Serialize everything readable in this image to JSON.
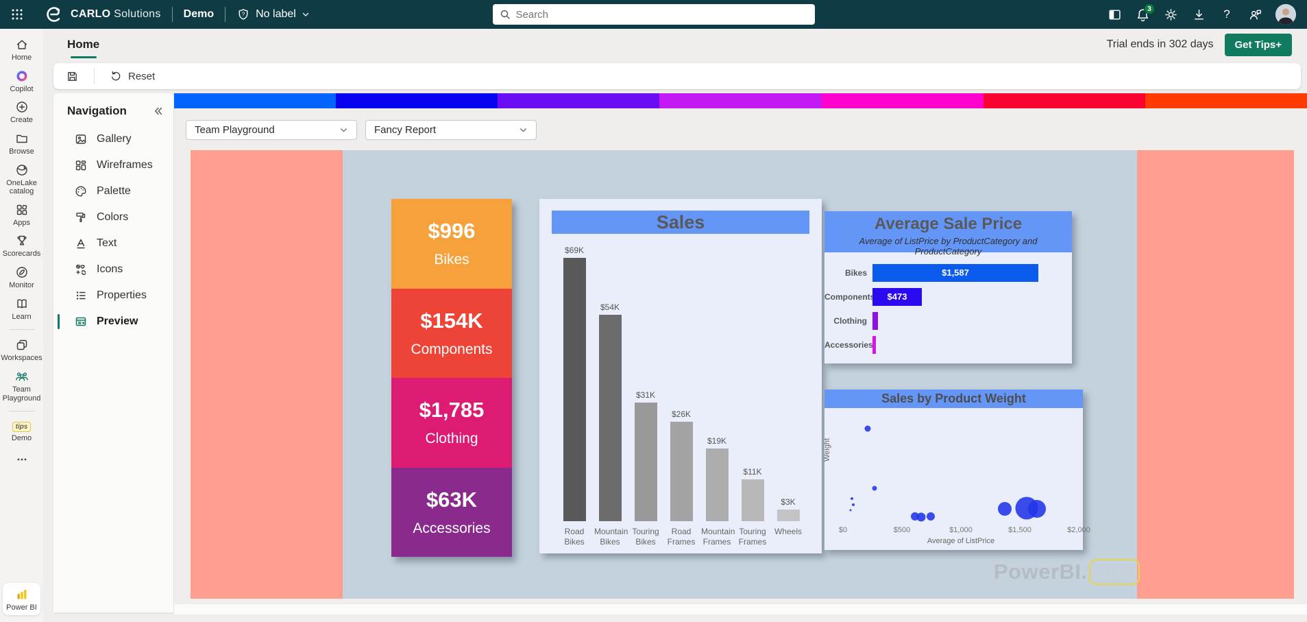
{
  "topbar": {
    "brand_bold": "CARLO",
    "brand_light": "Solutions",
    "env_label": "Demo",
    "sensitivity_label": "No label",
    "search_placeholder": "Search",
    "notification_count": "3"
  },
  "tabbar": {
    "active_tab": "Home",
    "trial_text": "Trial ends in 302 days",
    "cta_label": "Get Tips+"
  },
  "toolbar": {
    "reset_label": "Reset"
  },
  "rail": {
    "items": [
      {
        "type": "item",
        "label": "Home",
        "icon": "home-icon"
      },
      {
        "type": "item",
        "label": "Copilot",
        "icon": "copilot-icon"
      },
      {
        "type": "item",
        "label": "Create",
        "icon": "create-icon"
      },
      {
        "type": "item",
        "label": "Browse",
        "icon": "browse-icon"
      },
      {
        "type": "item",
        "label": "OneLake catalog",
        "icon": "onelake-icon"
      },
      {
        "type": "item",
        "label": "Apps",
        "icon": "apps-icon"
      },
      {
        "type": "item",
        "label": "Scorecards",
        "icon": "scorecards-icon"
      },
      {
        "type": "item",
        "label": "Monitor",
        "icon": "monitor-icon"
      },
      {
        "type": "item",
        "label": "Learn",
        "icon": "learn-icon"
      },
      {
        "type": "divider"
      },
      {
        "type": "item",
        "label": "Workspaces",
        "icon": "workspaces-icon"
      },
      {
        "type": "item",
        "label": "Team Playground",
        "icon": "team-playground-icon"
      },
      {
        "type": "divider"
      },
      {
        "type": "item",
        "label": "Demo",
        "icon": "tips-logo-icon"
      },
      {
        "type": "more",
        "icon": "more-icon"
      }
    ],
    "bottom_item": {
      "label": "Power BI",
      "icon": "powerbi-icon"
    }
  },
  "nav": {
    "title": "Navigation",
    "items": [
      {
        "label": "Gallery",
        "icon": "gallery-icon",
        "active": false
      },
      {
        "label": "Wireframes",
        "icon": "wireframes-icon",
        "active": false
      },
      {
        "label": "Palette",
        "icon": "palette-icon",
        "active": false
      },
      {
        "label": "Colors",
        "icon": "colors-icon",
        "active": false
      },
      {
        "label": "Text",
        "icon": "text-icon",
        "active": false
      },
      {
        "label": "Icons",
        "icon": "icons-icon",
        "active": false
      },
      {
        "label": "Properties",
        "icon": "properties-icon",
        "active": false
      },
      {
        "label": "Preview",
        "icon": "preview-icon",
        "active": true
      }
    ]
  },
  "selectors": {
    "workspace": "Team Playground",
    "report": "Fancy Report"
  },
  "color_strip": [
    "#0164fe",
    "#0502f0",
    "#6a0cf4",
    "#c319f4",
    "#ff02cd",
    "#fa0330",
    "#ff3b02"
  ],
  "kpis": [
    {
      "value": "$996",
      "label": "Bikes",
      "color": "#f6a13c"
    },
    {
      "value": "$154K",
      "label": "Components",
      "color": "#ee4337"
    },
    {
      "value": "$1,785",
      "label": "Clothing",
      "color": "#de1b72"
    },
    {
      "value": "$63K",
      "label": "Accessories",
      "color": "#8b2a8d"
    }
  ],
  "watermark": {
    "brand": "PowerBI.",
    "suffix": "tips"
  },
  "chart_data": [
    {
      "type": "bar",
      "title": "Sales",
      "categories": [
        "Road Bikes",
        "Mountain Bikes",
        "Touring Bikes",
        "Road Frames",
        "Mountain Frames",
        "Touring Frames",
        "Wheels"
      ],
      "values": [
        69,
        54,
        31,
        26,
        19,
        11,
        3
      ],
      "data_labels": [
        "$69K",
        "$54K",
        "$31K",
        "$26K",
        "$19K",
        "$11K",
        "$3K"
      ],
      "unit": "K USD",
      "ylim": [
        0,
        70
      ],
      "grid": false,
      "bar_colors": [
        "#595959",
        "#6c6c6c",
        "#999999",
        "#a3a3a3",
        "#adadad",
        "#b8b8b8",
        "#c3c3c3"
      ]
    },
    {
      "type": "bar",
      "orientation": "horizontal",
      "title": "Average Sale Price",
      "subtitle": "Average of ListPrice by ProductCategory and ProductCategory",
      "categories": [
        "Bikes",
        "Components",
        "Clothing",
        "Accessories"
      ],
      "values": [
        1587,
        473,
        50,
        35
      ],
      "data_labels": [
        "$1,587",
        "$473",
        "",
        ""
      ],
      "xlim": [
        0,
        1650
      ],
      "bar_colors": [
        "#0b5cec",
        "#2b0af0",
        "#8a12e8",
        "#d414e8"
      ]
    },
    {
      "type": "scatter",
      "title": "Sales by Product Weight",
      "xlabel": "Average of ListPrice",
      "ylabel": "Weight",
      "x_tick_labels": [
        "$0",
        "$500",
        "$1,000",
        "$1,500",
        "$2,000"
      ],
      "xlim": [
        0,
        2000
      ],
      "dot_color": "#2134e8",
      "points": [
        {
          "price": 210,
          "weight_frac": 0.9,
          "size": 9
        },
        {
          "price": 265,
          "weight_frac": 0.33,
          "size": 7
        },
        {
          "price": 75,
          "weight_frac": 0.23,
          "size": 4
        },
        {
          "price": 85,
          "weight_frac": 0.17,
          "size": 4
        },
        {
          "price": 65,
          "weight_frac": 0.12,
          "size": 3
        },
        {
          "price": 610,
          "weight_frac": 0.06,
          "size": 12
        },
        {
          "price": 660,
          "weight_frac": 0.05,
          "size": 13
        },
        {
          "price": 745,
          "weight_frac": 0.06,
          "size": 12
        },
        {
          "price": 1370,
          "weight_frac": 0.13,
          "size": 20
        },
        {
          "price": 1560,
          "weight_frac": 0.14,
          "size": 33
        },
        {
          "price": 1645,
          "weight_frac": 0.13,
          "size": 26
        }
      ]
    }
  ]
}
